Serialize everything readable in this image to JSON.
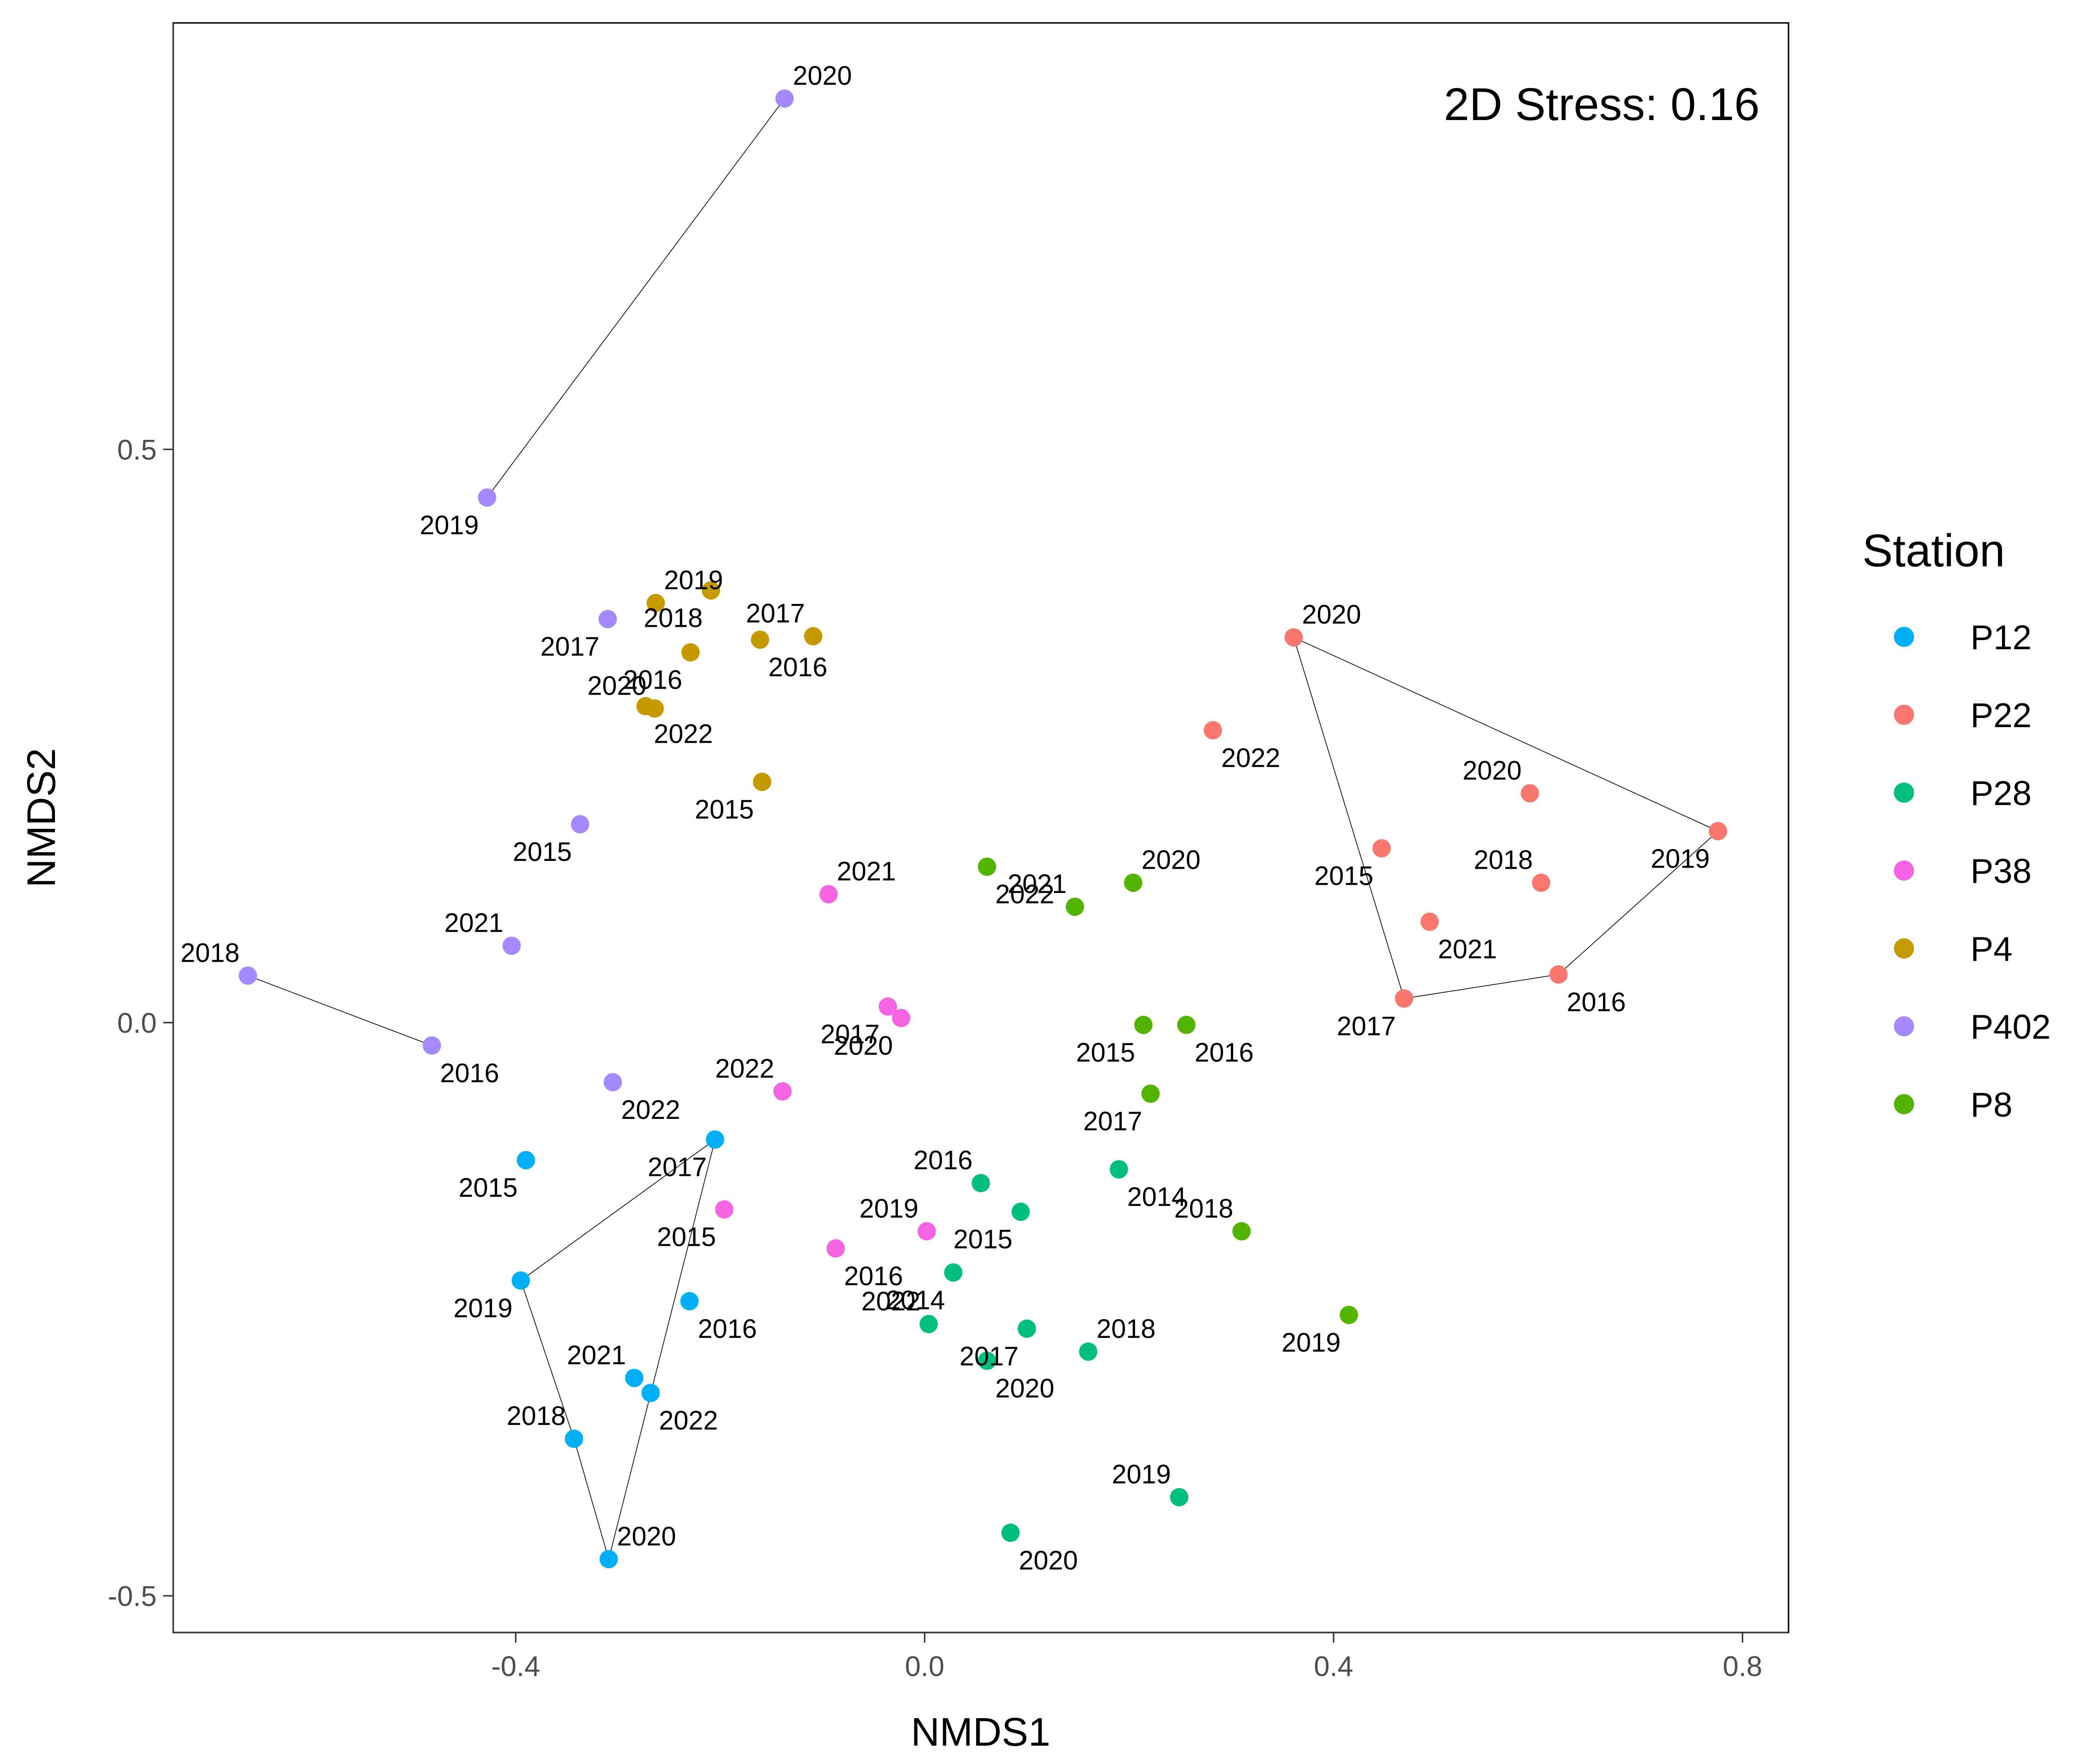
{
  "chart_data": {
    "type": "scatter",
    "xlabel": "NMDS1",
    "ylabel": "NMDS2",
    "annotation": "2D Stress: 0.16",
    "xlim": [
      -0.735,
      0.845
    ],
    "ylim": [
      -0.532,
      0.872
    ],
    "x_ticks": [
      {
        "value": -0.4,
        "label": "-0.4"
      },
      {
        "value": 0.0,
        "label": "0.0"
      },
      {
        "value": 0.4,
        "label": "0.4"
      },
      {
        "value": 0.8,
        "label": "0.8"
      }
    ],
    "y_ticks": [
      {
        "value": -0.5,
        "label": "-0.5"
      },
      {
        "value": 0.0,
        "label": "0.0"
      },
      {
        "value": 0.5,
        "label": "0.5"
      }
    ],
    "grid": false,
    "legend": {
      "title": "Station",
      "position": "right"
    },
    "series": [
      {
        "name": "P12",
        "color": "#00B0F6",
        "points": [
          {
            "year": "2015",
            "x": -0.39,
            "y": -0.12
          },
          {
            "year": "2016",
            "x": -0.23,
            "y": -0.243
          },
          {
            "year": "2017",
            "x": -0.205,
            "y": -0.102
          },
          {
            "year": "2018",
            "x": -0.343,
            "y": -0.363
          },
          {
            "year": "2019",
            "x": -0.395,
            "y": -0.225
          },
          {
            "year": "2020",
            "x": -0.309,
            "y": -0.468
          },
          {
            "year": "2021",
            "x": -0.284,
            "y": -0.31
          },
          {
            "year": "2022",
            "x": -0.268,
            "y": -0.323
          }
        ],
        "path": [
          "2019",
          "2017",
          "2020",
          "2018",
          "2019"
        ]
      },
      {
        "name": "P22",
        "color": "#F8766D",
        "points": [
          {
            "year": "2015",
            "x": 0.447,
            "y": 0.152
          },
          {
            "year": "2016",
            "x": 0.62,
            "y": 0.042
          },
          {
            "year": "2017",
            "x": 0.469,
            "y": 0.021
          },
          {
            "year": "2018",
            "x": 0.603,
            "y": 0.122
          },
          {
            "year": "2019",
            "x": 0.776,
            "y": 0.167
          },
          {
            "year": "2020",
            "x": 0.361,
            "y": 0.336
          },
          {
            "year": "2020",
            "x": 0.592,
            "y": 0.2
          },
          {
            "year": "2021",
            "x": 0.494,
            "y": 0.088
          },
          {
            "year": "2022",
            "x": 0.282,
            "y": 0.255
          }
        ],
        "path": [
          "2020",
          "2017",
          "2016",
          "2019",
          "2020"
        ]
      },
      {
        "name": "P28",
        "color": "#00BF7D",
        "points": [
          {
            "year": "2014",
            "x": 0.028,
            "y": -0.218
          },
          {
            "year": "2014",
            "x": 0.19,
            "y": -0.128
          },
          {
            "year": "2015",
            "x": 0.094,
            "y": -0.165
          },
          {
            "year": "2016",
            "x": 0.055,
            "y": -0.14
          },
          {
            "year": "2017",
            "x": 0.1,
            "y": -0.267
          },
          {
            "year": "2018",
            "x": 0.16,
            "y": -0.287
          },
          {
            "year": "2019",
            "x": 0.249,
            "y": -0.414
          },
          {
            "year": "2020",
            "x": 0.084,
            "y": -0.445
          },
          {
            "year": "2020",
            "x": 0.061,
            "y": -0.295
          },
          {
            "year": "2022",
            "x": 0.004,
            "y": -0.263
          }
        ]
      },
      {
        "name": "P38",
        "color": "#F564E3",
        "points": [
          {
            "year": "2015",
            "x": -0.196,
            "y": -0.163
          },
          {
            "year": "2016",
            "x": -0.087,
            "y": -0.197
          },
          {
            "year": "2017",
            "x": -0.036,
            "y": 0.014
          },
          {
            "year": "2019",
            "x": 0.002,
            "y": -0.182
          },
          {
            "year": "2020",
            "x": -0.023,
            "y": 0.004
          },
          {
            "year": "2021",
            "x": -0.094,
            "y": 0.112
          },
          {
            "year": "2022",
            "x": -0.139,
            "y": -0.06
          }
        ]
      },
      {
        "name": "P4",
        "color": "#C49A00",
        "points": [
          {
            "year": "2015",
            "x": -0.159,
            "y": 0.21
          },
          {
            "year": "2016",
            "x": -0.161,
            "y": 0.334
          },
          {
            "year": "2016",
            "x": -0.229,
            "y": 0.323
          },
          {
            "year": "2017",
            "x": -0.109,
            "y": 0.337
          },
          {
            "year": "2018",
            "x": -0.209,
            "y": 0.377
          },
          {
            "year": "2019",
            "x": -0.263,
            "y": 0.366
          },
          {
            "year": "2020",
            "x": -0.264,
            "y": 0.274
          },
          {
            "year": "2022",
            "x": -0.273,
            "y": 0.276
          }
        ]
      },
      {
        "name": "P402",
        "color": "#A58AFF",
        "points": [
          {
            "year": "2015",
            "x": -0.337,
            "y": 0.173
          },
          {
            "year": "2016",
            "x": -0.482,
            "y": -0.02
          },
          {
            "year": "2017",
            "x": -0.31,
            "y": 0.352
          },
          {
            "year": "2018",
            "x": -0.662,
            "y": 0.041
          },
          {
            "year": "2019",
            "x": -0.428,
            "y": 0.458
          },
          {
            "year": "2020",
            "x": -0.137,
            "y": 0.806
          },
          {
            "year": "2021",
            "x": -0.404,
            "y": 0.067
          },
          {
            "year": "2022",
            "x": -0.305,
            "y": -0.052
          }
        ]
      },
      {
        "name": "P8",
        "color": "#53B400",
        "points": [
          {
            "year": "2015",
            "x": 0.214,
            "y": -0.002
          },
          {
            "year": "2016",
            "x": 0.256,
            "y": -0.002
          },
          {
            "year": "2017",
            "x": 0.221,
            "y": -0.062
          },
          {
            "year": "2018",
            "x": 0.31,
            "y": -0.182
          },
          {
            "year": "2019",
            "x": 0.415,
            "y": -0.255
          },
          {
            "year": "2020",
            "x": 0.204,
            "y": 0.122
          },
          {
            "year": "2021",
            "x": 0.147,
            "y": 0.101
          },
          {
            "year": "2022",
            "x": 0.061,
            "y": 0.136
          }
        ]
      }
    ],
    "connector_paths": [
      {
        "series": "P402",
        "from": "2020",
        "to": "2019"
      },
      {
        "series": "P402",
        "from": "2018",
        "to": "2016"
      }
    ]
  }
}
